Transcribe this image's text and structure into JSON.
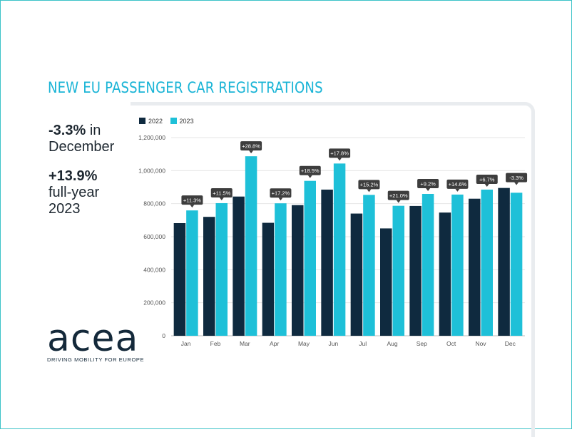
{
  "title": "NEW EU PASSENGER CAR REGISTRATIONS",
  "stats": {
    "december_value": "-3.3%",
    "december_label": "in",
    "december_label2": "December",
    "year_value": "+13.9%",
    "year_label1": "full-year",
    "year_label2": "2023"
  },
  "logo": {
    "name": "acea",
    "tagline": "DRIVING MOBILITY FOR EUROPE"
  },
  "colors": {
    "series_2022": "#0f2a3f",
    "series_2023": "#1ec0d8",
    "label_box": "#3d3d3d",
    "grid": "#e6e6e6"
  },
  "chart_data": {
    "type": "bar",
    "title": "NEW EU PASSENGER CAR REGISTRATIONS",
    "xlabel": "",
    "ylabel": "",
    "ylim": [
      0,
      1200000
    ],
    "yticks": [
      0,
      200000,
      400000,
      600000,
      800000,
      1000000,
      1200000
    ],
    "ytick_labels": [
      "0",
      "200,000",
      "400,000",
      "600,000",
      "800,000",
      "1,000,000",
      "1,200,000"
    ],
    "categories": [
      "Jan",
      "Feb",
      "Mar",
      "Apr",
      "May",
      "Jun",
      "Jul",
      "Aug",
      "Sep",
      "Oct",
      "Nov",
      "Dec"
    ],
    "series": [
      {
        "name": "2022",
        "values": [
          682000,
          720000,
          843000,
          684000,
          791000,
          885000,
          740000,
          650000,
          786000,
          746000,
          830000,
          895000
        ]
      },
      {
        "name": "2023",
        "values": [
          759000,
          803000,
          1087000,
          802000,
          938000,
          1043000,
          853000,
          787000,
          859000,
          855000,
          885000,
          866000
        ]
      }
    ],
    "change_labels": [
      "+11.3%",
      "+11.5%",
      "+28.8%",
      "+17.2%",
      "+18.5%",
      "+17.8%",
      "+15.2%",
      "+21.0%",
      "+9.2%",
      "+14.6%",
      "+6.7%",
      "-3.3%"
    ],
    "legend_position": "top-left",
    "grid": true
  }
}
